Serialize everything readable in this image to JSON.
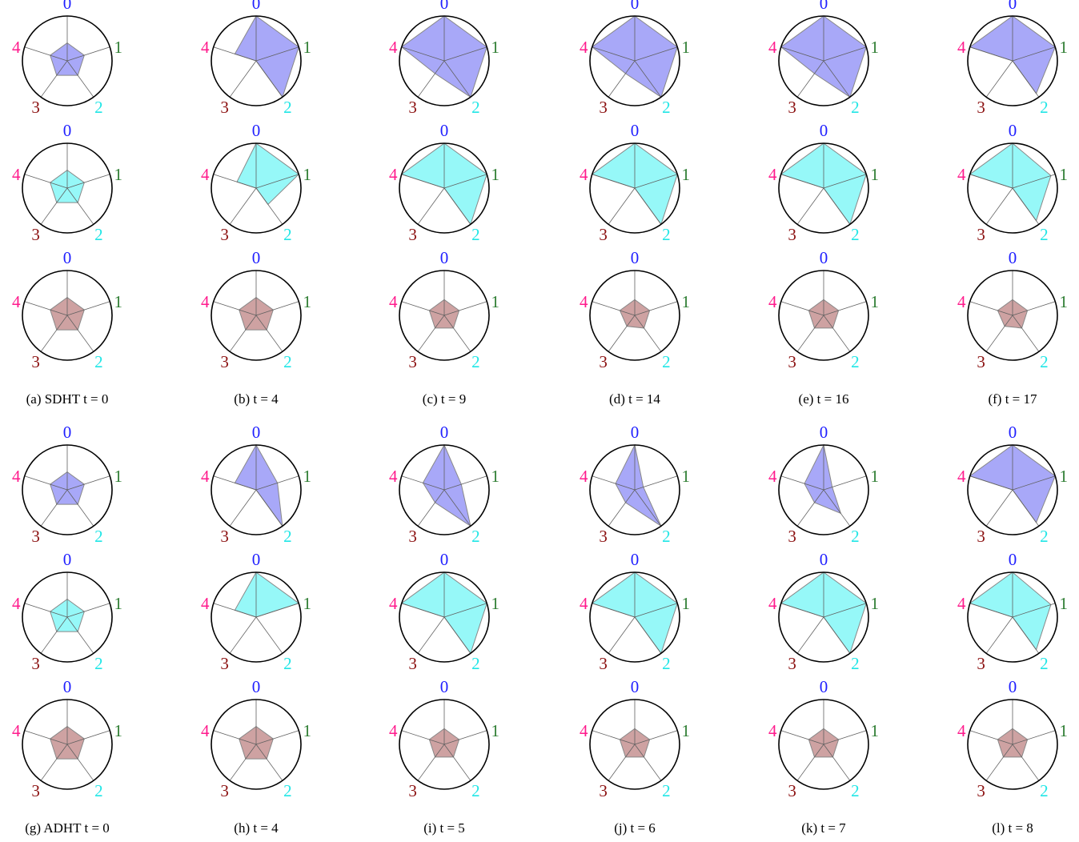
{
  "axis_labels": [
    "0",
    "1",
    "2",
    "3",
    "4"
  ],
  "colors": {
    "axis_labels": [
      "#1f1fff",
      "#2e7d32",
      "#22e6e6",
      "#8b1010",
      "#ff1a8c"
    ],
    "rows": [
      "#7a7af5",
      "#5df5f5",
      "#b47070"
    ],
    "row_fill_opacity": 0.65,
    "circle": "#000000",
    "spoke": "#606060"
  },
  "chart_data": {
    "type": "radar",
    "value_range": [
      0,
      1
    ],
    "groups": [
      {
        "method": "SDHT",
        "panels": [
          {
            "caption": "(a) SDHT t = 0",
            "rows": [
              [
                0.4,
                0.4,
                0.4,
                0.4,
                0.4
              ],
              [
                0.4,
                0.4,
                0.4,
                0.4,
                0.4
              ],
              [
                0.4,
                0.4,
                0.4,
                0.4,
                0.4
              ]
            ]
          },
          {
            "caption": "(b) t = 4",
            "rows": [
              [
                1.0,
                1.0,
                1.0,
                0.0,
                0.5
              ],
              [
                1.0,
                1.0,
                0.45,
                0.0,
                0.45
              ],
              [
                0.4,
                0.4,
                0.4,
                0.4,
                0.4
              ]
            ]
          },
          {
            "caption": "(c) t = 9",
            "rows": [
              [
                1.0,
                1.0,
                1.0,
                0.35,
                1.0
              ],
              [
                1.0,
                1.0,
                1.0,
                0.0,
                1.0
              ],
              [
                0.35,
                0.35,
                0.35,
                0.35,
                0.35
              ]
            ]
          },
          {
            "caption": "(d) t = 14",
            "rows": [
              [
                1.0,
                1.0,
                1.0,
                0.35,
                1.0
              ],
              [
                1.0,
                1.0,
                1.0,
                0.0,
                1.0
              ],
              [
                0.35,
                0.35,
                0.35,
                0.3,
                0.35
              ]
            ]
          },
          {
            "caption": "(e) t = 16",
            "rows": [
              [
                1.0,
                1.0,
                1.0,
                0.35,
                1.0
              ],
              [
                1.0,
                1.0,
                1.0,
                0.0,
                1.0
              ],
              [
                0.35,
                0.35,
                0.35,
                0.35,
                0.35
              ]
            ]
          },
          {
            "caption": "(f) t = 17",
            "rows": [
              [
                1.0,
                1.0,
                0.9,
                0.0,
                1.0
              ],
              [
                1.0,
                0.9,
                0.9,
                0.0,
                1.0
              ],
              [
                0.35,
                0.35,
                0.35,
                0.3,
                0.35
              ]
            ]
          }
        ]
      },
      {
        "method": "ADHT",
        "panels": [
          {
            "caption": "(g) ADHT t = 0",
            "rows": [
              [
                0.4,
                0.4,
                0.4,
                0.4,
                0.4
              ],
              [
                0.4,
                0.4,
                0.4,
                0.4,
                0.4
              ],
              [
                0.4,
                0.4,
                0.4,
                0.4,
                0.4
              ]
            ]
          },
          {
            "caption": "(h) t = 4",
            "rows": [
              [
                1.0,
                0.5,
                1.0,
                0.0,
                0.5
              ],
              [
                1.0,
                1.0,
                0.0,
                0.0,
                0.5
              ],
              [
                0.4,
                0.4,
                0.4,
                0.4,
                0.4
              ]
            ]
          },
          {
            "caption": "(i) t = 5",
            "rows": [
              [
                1.0,
                0.4,
                1.0,
                0.35,
                0.5
              ],
              [
                1.0,
                1.0,
                1.0,
                0.0,
                1.0
              ],
              [
                0.35,
                0.35,
                0.35,
                0.35,
                0.35
              ]
            ]
          },
          {
            "caption": "(j) t = 6",
            "rows": [
              [
                1.0,
                0.2,
                1.0,
                0.35,
                0.45
              ],
              [
                1.0,
                1.0,
                1.0,
                0.0,
                1.0
              ],
              [
                0.35,
                0.35,
                0.35,
                0.35,
                0.35
              ]
            ]
          },
          {
            "caption": "(k) t = 7",
            "rows": [
              [
                1.0,
                0.2,
                0.65,
                0.35,
                0.45
              ],
              [
                1.0,
                1.0,
                1.0,
                0.0,
                1.0
              ],
              [
                0.35,
                0.35,
                0.35,
                0.35,
                0.35
              ]
            ]
          },
          {
            "caption": "(l) t = 8",
            "rows": [
              [
                1.0,
                1.0,
                0.9,
                0.0,
                1.0
              ],
              [
                1.0,
                0.9,
                0.9,
                0.0,
                1.0
              ],
              [
                0.35,
                0.35,
                0.35,
                0.35,
                0.35
              ]
            ]
          }
        ]
      }
    ]
  }
}
